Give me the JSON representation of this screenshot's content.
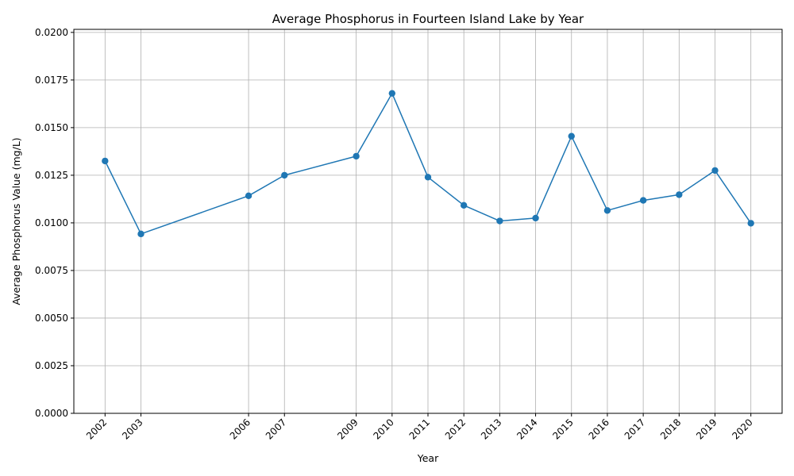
{
  "chart_data": {
    "type": "line",
    "title": "Average Phosphorus in Fourteen Island Lake by Year",
    "xlabel": "Year",
    "ylabel": "Average Phosphorus Value (mg/L)",
    "x": [
      2002,
      2003,
      2006,
      2007,
      2009,
      2010,
      2011,
      2012,
      2013,
      2014,
      2015,
      2016,
      2017,
      2018,
      2019,
      2020
    ],
    "x_tick_labels": [
      "2002",
      "2003",
      "2006",
      "2007",
      "2009",
      "2010",
      "2011",
      "2012",
      "2013",
      "2014",
      "2015",
      "2016",
      "2017",
      "2018",
      "2019",
      "2020"
    ],
    "series": [
      {
        "values": [
          0.01325,
          0.00942,
          0.01142,
          0.0125,
          0.0135,
          0.0168,
          0.0124,
          0.01092,
          0.0101,
          0.01025,
          0.01455,
          0.01065,
          0.01118,
          0.01148,
          0.01275,
          0.00998
        ],
        "color": "#1f77b4",
        "marker": "circle"
      }
    ],
    "xlim": [
      2001.13,
      2020.87
    ],
    "ylim": [
      0,
      0.02016
    ],
    "y_ticks": [
      0.0,
      0.0025,
      0.005,
      0.0075,
      0.01,
      0.0125,
      0.015,
      0.0175,
      0.02
    ],
    "y_tick_labels": [
      "0.0000",
      "0.0025",
      "0.0050",
      "0.0075",
      "0.0100",
      "0.0125",
      "0.0150",
      "0.0175",
      "0.0200"
    ],
    "grid": true
  }
}
